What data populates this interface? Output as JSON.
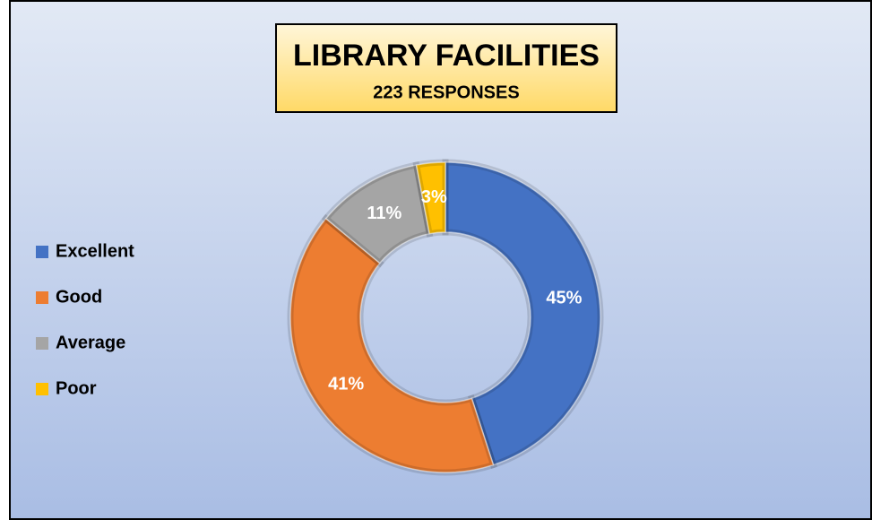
{
  "chart_data": {
    "type": "donut",
    "title": "LIBRARY FACILITIES",
    "subtitle": "223 RESPONSES",
    "categories": [
      "Excellent",
      "Good",
      "Average",
      "Poor"
    ],
    "values": [
      45,
      41,
      11,
      3
    ],
    "value_labels": [
      "45%",
      "41%",
      "11%",
      "3%"
    ],
    "colors": [
      "#4472c4",
      "#ed7d31",
      "#a5a5a5",
      "#ffc000"
    ],
    "legend": "left"
  }
}
